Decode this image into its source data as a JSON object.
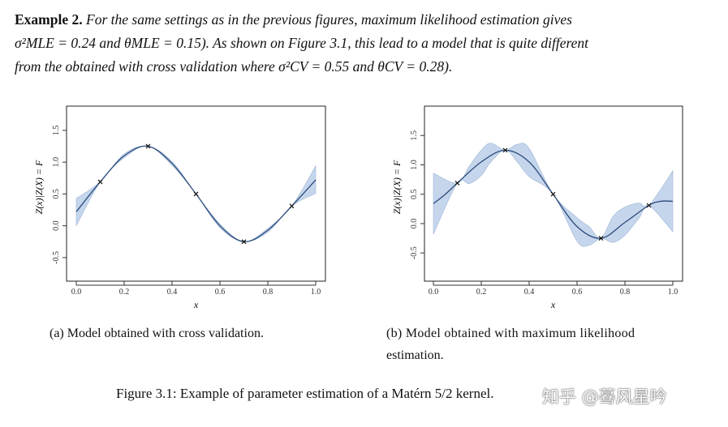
{
  "paragraph": {
    "lead": "Example 2.",
    "line1": " For the same settings as in the previous figures, maximum likelihood estimation gives",
    "line2": "σ²MLE = 0.24 and θMLE = 0.15). As shown on Figure 3.1, this lead to a model that is quite different",
    "line3": "from the obtained with cross validation where σ²CV = 0.55 and θCV = 0.28)."
  },
  "captions": {
    "a": "(a) Model obtained with cross validation.",
    "b1": "(b) Model obtained with maximum likelihood",
    "b2": "estimation.",
    "figure": "Figure 3.1: Example of parameter estimation of a Matérn 5/2 kernel."
  },
  "watermark": "知乎 @蓦风星吟",
  "chart_data": [
    {
      "type": "line",
      "title": "",
      "xlabel": "x",
      "ylabel": "Z(x)|Z(X) = F",
      "xlim": [
        0,
        1
      ],
      "ylim": [
        -0.87,
        1.88
      ],
      "xticks": [
        "0.0",
        "0.2",
        "0.4",
        "0.6",
        "0.8",
        "1.0"
      ],
      "yticks": [
        "-0.5",
        "0.0",
        "0.5",
        "1.0",
        "1.5"
      ],
      "line_color": "#2b4a7a",
      "band_color": "#c5d6ec",
      "observations": {
        "x": [
          0.1,
          0.3,
          0.5,
          0.7,
          0.9
        ],
        "y": [
          0.69,
          1.25,
          0.5,
          -0.25,
          0.31
        ]
      },
      "mean": {
        "x": [
          0,
          0.1,
          0.2,
          0.3,
          0.4,
          0.5,
          0.6,
          0.7,
          0.8,
          0.9,
          1.0
        ],
        "y": [
          0.22,
          0.69,
          1.1,
          1.25,
          0.98,
          0.5,
          0.0,
          -0.25,
          -0.07,
          0.31,
          0.72
        ]
      },
      "band": {
        "x": [
          0,
          0.1,
          0.2,
          0.3,
          0.4,
          0.5,
          0.6,
          0.7,
          0.8,
          0.9,
          1.0
        ],
        "lower": [
          0.0,
          0.69,
          1.07,
          1.25,
          0.95,
          0.5,
          -0.03,
          -0.25,
          -0.1,
          0.31,
          0.51
        ],
        "upper": [
          0.43,
          0.69,
          1.13,
          1.25,
          1.01,
          0.5,
          0.03,
          -0.25,
          -0.04,
          0.31,
          0.94
        ]
      }
    },
    {
      "type": "line",
      "title": "",
      "xlabel": "x",
      "ylabel": "Z(x)|Z(X) = F",
      "xlim": [
        0,
        1
      ],
      "ylim": [
        -0.98,
        2.0
      ],
      "xticks": [
        "0.0",
        "0.2",
        "0.4",
        "0.6",
        "0.8",
        "1.0"
      ],
      "yticks": [
        "-0.5",
        "0.0",
        "0.5",
        "1.0",
        "1.5"
      ],
      "line_color": "#2b4a7a",
      "band_color": "#c5d6ec",
      "observations": {
        "x": [
          0.1,
          0.3,
          0.5,
          0.7,
          0.9
        ],
        "y": [
          0.69,
          1.25,
          0.5,
          -0.25,
          0.31
        ]
      },
      "mean": {
        "x": [
          0,
          0.05,
          0.1,
          0.2,
          0.3,
          0.4,
          0.5,
          0.6,
          0.7,
          0.8,
          0.9,
          0.95,
          1.0
        ],
        "y": [
          0.34,
          0.5,
          0.69,
          1.05,
          1.25,
          1.05,
          0.5,
          -0.05,
          -0.25,
          0.02,
          0.31,
          0.38,
          0.38
        ]
      },
      "band": {
        "x": [
          0,
          0.1,
          0.15,
          0.2,
          0.24,
          0.3,
          0.35,
          0.4,
          0.5,
          0.6,
          0.65,
          0.7,
          0.75,
          0.8,
          0.86,
          0.9,
          1.0
        ],
        "upper": [
          0.86,
          0.69,
          0.98,
          1.25,
          1.37,
          1.25,
          1.35,
          1.28,
          0.5,
          0.1,
          -0.05,
          -0.25,
          0.12,
          0.28,
          0.35,
          0.31,
          0.9
        ],
        "lower": [
          -0.18,
          0.69,
          0.68,
          0.82,
          1.05,
          1.25,
          1.05,
          0.8,
          0.5,
          -0.3,
          -0.37,
          -0.25,
          -0.32,
          -0.2,
          0.1,
          0.31,
          -0.14
        ]
      }
    }
  ]
}
